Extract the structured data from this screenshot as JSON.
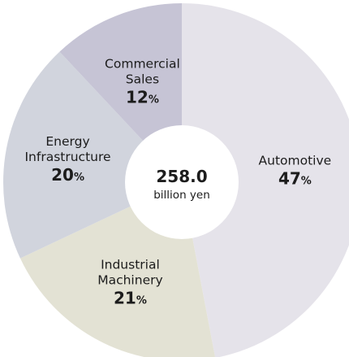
{
  "chart_data": {
    "type": "pie",
    "variant": "donut",
    "center": {
      "value": "258.0",
      "unit": "billion yen"
    },
    "percent_sign": "%",
    "slices": [
      {
        "label_lines": [
          "Automotive"
        ],
        "value": 47,
        "color": "#e5e3ea"
      },
      {
        "label_lines": [
          "Industrial",
          "Machinery"
        ],
        "value": 21,
        "color": "#e3e2d4"
      },
      {
        "label_lines": [
          "Energy",
          "Infrastructure"
        ],
        "value": 20,
        "color": "#d1d4dd"
      },
      {
        "label_lines": [
          "Commercial",
          "Sales"
        ],
        "value": 12,
        "color": "#c6c4d5"
      }
    ]
  }
}
